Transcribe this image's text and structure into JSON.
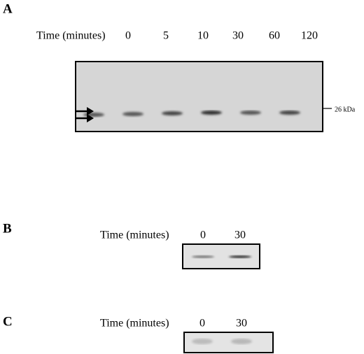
{
  "panels": [
    {
      "label": "A",
      "time_label": "Time (minutes)",
      "lanes": [
        "0",
        "5",
        "10",
        "30",
        "60",
        "120"
      ],
      "marker": "26 kDa"
    },
    {
      "label": "B",
      "time_label": "Time (minutes)",
      "lanes": [
        "0",
        "30"
      ]
    },
    {
      "label": "C",
      "time_label": "Time (minutes)",
      "lanes": [
        "0",
        "30"
      ]
    }
  ]
}
